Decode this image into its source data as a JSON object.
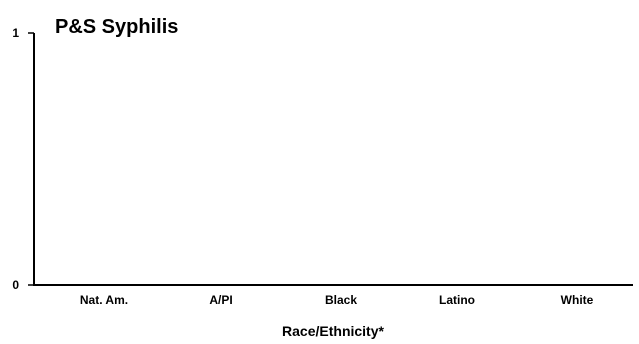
{
  "chart_data": {
    "type": "bar",
    "title": "P&S Syphilis",
    "xlabel": "Race/Ethnicity*",
    "ylabel": "",
    "categories": [
      "Nat. Am.",
      "A/PI",
      "Black",
      "Latino",
      "White"
    ],
    "series": [
      {
        "values": [
          0,
          0,
          0,
          0,
          0
        ]
      }
    ],
    "ylim": [
      0,
      1
    ],
    "yticks": [
      "0",
      "1"
    ],
    "grid": false,
    "legend": "none",
    "colors": {
      "axis": "#000000",
      "text": "#000000",
      "background": "#ffffff"
    }
  }
}
